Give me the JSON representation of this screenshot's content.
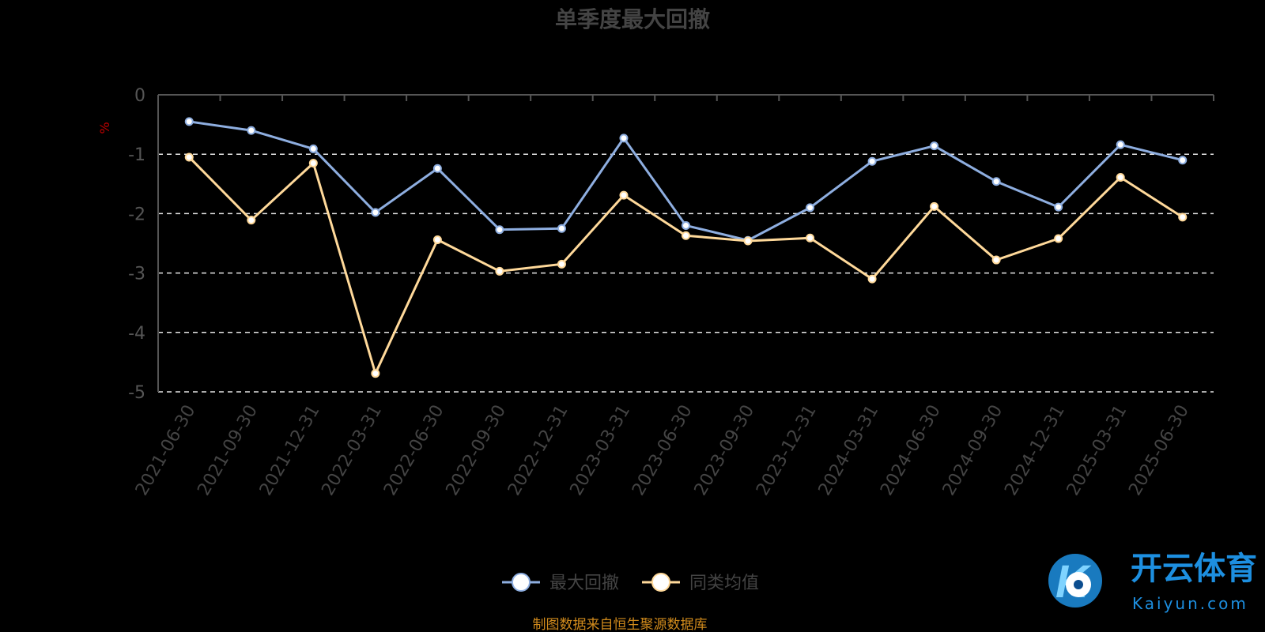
{
  "chart_data": {
    "type": "line",
    "title": "单季度最大回撤",
    "ylabel": "%",
    "ylim": [
      -5,
      0
    ],
    "yticks": [
      "0",
      "-1",
      "-2",
      "-3",
      "-4",
      "-5"
    ],
    "grid": "dashed horizontal",
    "legend": "bottom-center",
    "categories": [
      "2021-06-30",
      "2021-09-30",
      "2021-12-31",
      "2022-03-31",
      "2022-06-30",
      "2022-09-30",
      "2022-12-31",
      "2023-03-31",
      "2023-06-30",
      "2023-09-30",
      "2023-12-31",
      "2024-03-31",
      "2024-06-30",
      "2024-09-30",
      "2024-12-31",
      "2025-03-31",
      "2025-06-30"
    ],
    "series": [
      {
        "name": "最大回撤",
        "color": "#8eaee0",
        "values": [
          -0.45,
          -0.6,
          -0.91,
          -1.98,
          -1.24,
          -2.27,
          -2.25,
          -0.73,
          -2.2,
          -2.45,
          -1.9,
          -1.12,
          -0.86,
          -1.46,
          -1.89,
          -0.84,
          -1.1
        ]
      },
      {
        "name": "同类均值",
        "color": "#ffd99a",
        "values": [
          -1.05,
          -2.11,
          -1.15,
          -4.69,
          -2.44,
          -2.97,
          -2.85,
          -1.69,
          -2.37,
          -2.46,
          -2.41,
          -3.1,
          -1.88,
          -2.78,
          -2.42,
          -1.39,
          -2.06
        ]
      }
    ]
  },
  "footer": {
    "source": "制图数据来自恒生聚源数据库"
  },
  "watermark": {
    "logo_cn": "开云体育",
    "logo_en": "Kaiyun.com",
    "logo_mark": "K"
  }
}
